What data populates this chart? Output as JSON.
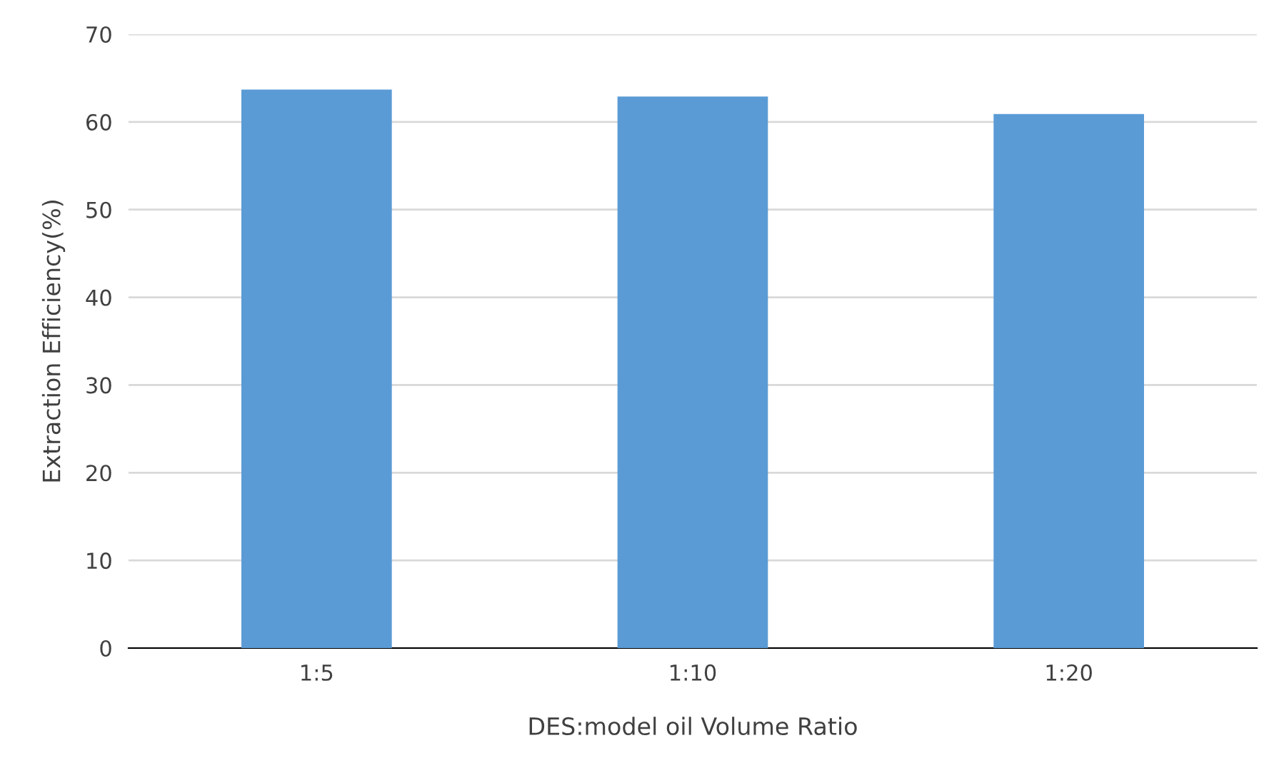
{
  "chart_data": {
    "type": "bar",
    "xlabel": "DES:model oil Volume Ratio",
    "ylabel": "Extraction Efficiency(%)",
    "categories": [
      "1:5",
      "1:10",
      "1:20"
    ],
    "values": [
      63.7,
      62.9,
      60.9
    ],
    "color": "#5b9bd5",
    "ylim": [
      0,
      70
    ],
    "yticks": [
      0,
      10,
      20,
      30,
      40,
      50,
      60,
      70
    ],
    "grid": "y",
    "legend": false
  }
}
